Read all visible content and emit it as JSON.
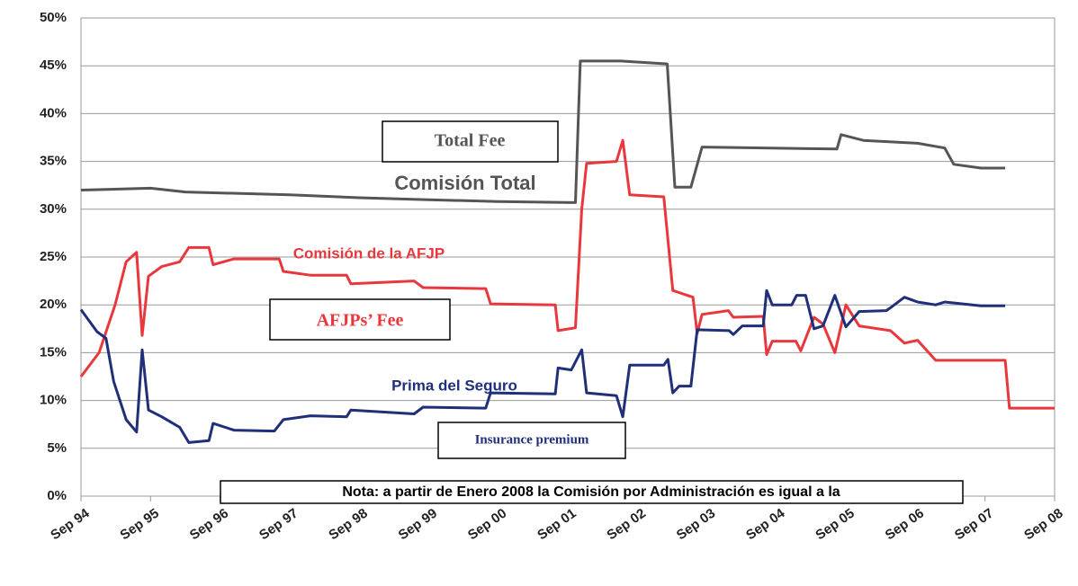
{
  "chart_data": {
    "type": "line",
    "xlim": [
      1994.67,
      2008.67
    ],
    "xticks": [
      {
        "value": 1994.67,
        "label": "Sep 94"
      },
      {
        "value": 1995.67,
        "label": "Sep 95"
      },
      {
        "value": 1996.67,
        "label": "Sep 96"
      },
      {
        "value": 1997.67,
        "label": "Sep 97"
      },
      {
        "value": 1998.67,
        "label": "Sep 98"
      },
      {
        "value": 1999.67,
        "label": "Sep 99"
      },
      {
        "value": 2000.67,
        "label": "Sep 00"
      },
      {
        "value": 2001.67,
        "label": "Sep 01"
      },
      {
        "value": 2002.67,
        "label": "Sep 02"
      },
      {
        "value": 2003.67,
        "label": "Sep 03"
      },
      {
        "value": 2004.67,
        "label": "Sep 04"
      },
      {
        "value": 2005.67,
        "label": "Sep 05"
      },
      {
        "value": 2006.67,
        "label": "Sep 06"
      },
      {
        "value": 2007.67,
        "label": "Sep 07"
      },
      {
        "value": 2008.67,
        "label": "Sep 08"
      }
    ],
    "ylim": [
      0,
      50
    ],
    "yticks": [
      {
        "value": 0,
        "label": "0%"
      },
      {
        "value": 5,
        "label": "5%"
      },
      {
        "value": 10,
        "label": "10%"
      },
      {
        "value": 15,
        "label": "15%"
      },
      {
        "value": 20,
        "label": "20%"
      },
      {
        "value": 25,
        "label": "25%"
      },
      {
        "value": 30,
        "label": "30%"
      },
      {
        "value": 35,
        "label": "35%"
      },
      {
        "value": 40,
        "label": "40%"
      },
      {
        "value": 45,
        "label": "45%"
      },
      {
        "value": 50,
        "label": "50%"
      }
    ],
    "grid": true,
    "series": [
      {
        "name": "Comisión Total",
        "color": "#555555",
        "x": [
          1994.67,
          1995.67,
          1996.17,
          1997.67,
          1998.67,
          1999.67,
          2000.67,
          2001.78,
          2001.85,
          2002.43,
          2003.1,
          2003.21,
          2003.44,
          2003.6,
          2005.54,
          2005.6,
          2005.92,
          2006.7,
          2007.09,
          2007.22,
          2007.61,
          2007.96
        ],
        "values": [
          32,
          32.2,
          31.8,
          31.5,
          31.2,
          31,
          30.8,
          30.7,
          45.5,
          45.5,
          45.2,
          32.3,
          32.3,
          36.5,
          36.3,
          37.8,
          37.2,
          36.9,
          36.4,
          34.7,
          34.3,
          34.3
        ]
      },
      {
        "name": "Comisión de la AFJP",
        "color": "#e8383d",
        "x": [
          1994.67,
          1994.93,
          1995.16,
          1995.32,
          1995.47,
          1995.55,
          1995.64,
          1995.83,
          1996.09,
          1996.22,
          1996.51,
          1996.57,
          1996.87,
          1997.52,
          1997.58,
          1997.97,
          1998.49,
          1998.55,
          1999.46,
          1999.59,
          2000.49,
          2000.56,
          2001.49,
          2001.53,
          2001.78,
          2001.87,
          2001.94,
          2002.37,
          2002.46,
          2002.56,
          2003.05,
          2003.18,
          2003.47,
          2003.53,
          2003.6,
          2003.98,
          2004.05,
          2004.48,
          2004.53,
          2004.61,
          2004.95,
          2005.02,
          2005.21,
          2005.34,
          2005.51,
          2005.67,
          2005.86,
          2006.31,
          2006.51,
          2006.7,
          2006.96,
          2007.96,
          2008.02,
          2008.67
        ],
        "values": [
          12.5,
          15,
          20,
          24.5,
          25.5,
          16.8,
          23,
          24,
          24.5,
          26,
          26,
          24.2,
          24.8,
          24.8,
          23.5,
          23.1,
          23.1,
          22.2,
          22.5,
          21.8,
          21.7,
          20.1,
          20,
          17.3,
          17.6,
          30,
          34.8,
          35,
          37.2,
          31.5,
          31.3,
          21.5,
          20.8,
          17,
          19,
          19.4,
          18.7,
          18.8,
          14.8,
          16.2,
          16.2,
          15.2,
          18.7,
          18,
          15,
          20,
          17.8,
          17.3,
          16,
          16.3,
          14.2,
          14.2,
          9.2,
          9.2
        ]
      },
      {
        "name": "Prima del Seguro",
        "color": "#1f2f7a",
        "x": [
          1994.67,
          1994.9,
          1995.03,
          1995.14,
          1995.32,
          1995.47,
          1995.55,
          1995.64,
          1995.83,
          1996.09,
          1996.22,
          1996.51,
          1996.57,
          1996.87,
          1997.45,
          1997.58,
          1997.97,
          1998.49,
          1998.55,
          1999.46,
          1999.59,
          2000.49,
          2000.56,
          2001.49,
          2001.53,
          2001.72,
          2001.87,
          2001.94,
          2002.37,
          2002.46,
          2002.56,
          2003.05,
          2003.11,
          2003.18,
          2003.27,
          2003.44,
          2003.53,
          2003.99,
          2004.05,
          2004.18,
          2004.48,
          2004.53,
          2004.61,
          2004.89,
          2004.96,
          2005.09,
          2005.21,
          2005.34,
          2005.51,
          2005.67,
          2005.86,
          2006.25,
          2006.31,
          2006.51,
          2006.7,
          2006.96,
          2007.09,
          2007.61,
          2007.96
        ],
        "values": [
          19.5,
          17.2,
          16.5,
          12,
          8,
          6.7,
          15.3,
          9,
          8.3,
          7.2,
          5.6,
          5.8,
          7.6,
          6.9,
          6.8,
          8,
          8.4,
          8.3,
          9,
          8.6,
          9.3,
          9.2,
          10.8,
          10.7,
          13.4,
          13.2,
          15.3,
          10.8,
          10.5,
          8.3,
          13.7,
          13.7,
          14.3,
          10.8,
          11.5,
          11.5,
          17.4,
          17.3,
          16.9,
          17.8,
          17.8,
          21.5,
          20,
          20,
          21,
          21,
          17.5,
          17.8,
          21,
          17.7,
          19.3,
          19.4,
          19.7,
          20.8,
          20.3,
          20,
          20.3,
          19.9,
          19.9
        ]
      }
    ],
    "annotations": [
      "Total Fee",
      "Comisión Total",
      "Comisión de la AFJP",
      "AFJPs’ Fee",
      "Prima del Seguro",
      "Insurance premium",
      "Nota: a partir de Enero 2008 la Comisión por Administración es igual a la"
    ]
  }
}
